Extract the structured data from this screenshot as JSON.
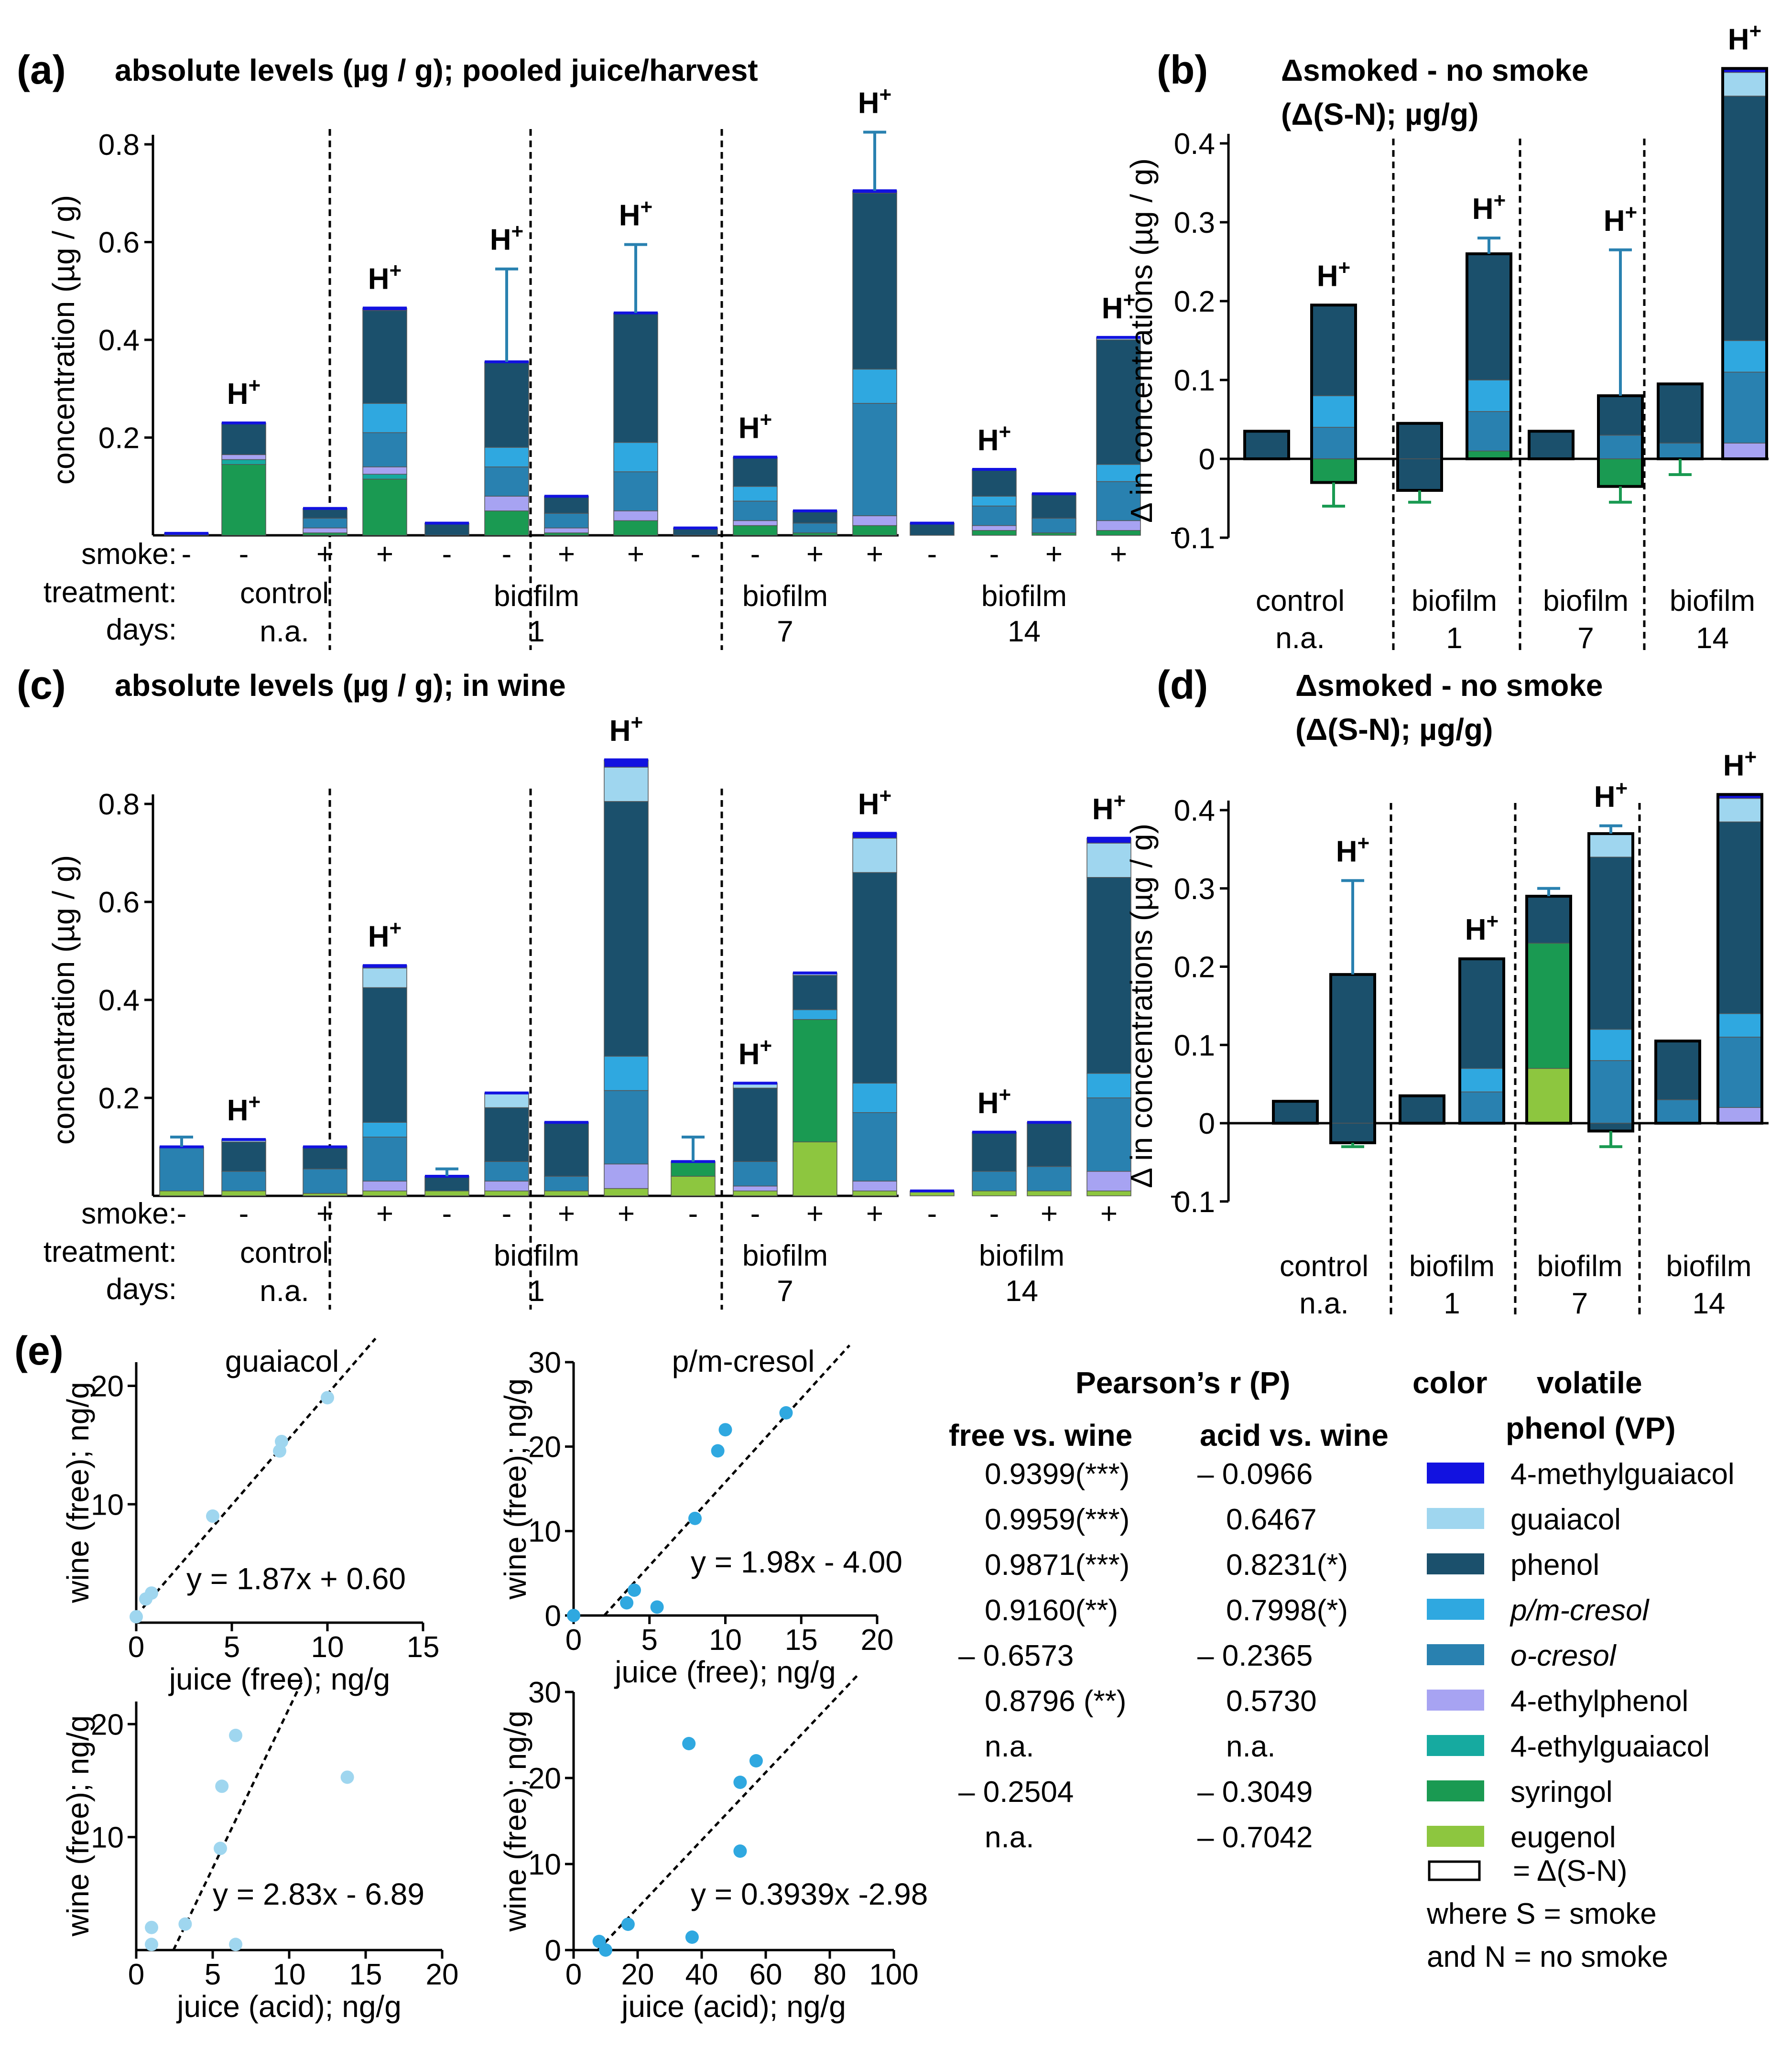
{
  "colors": {
    "4-methylguaiacol": "#1212e0",
    "guaiacol": "#9fd6ef",
    "phenol": "#1b506c",
    "p/m-cresol": "#2fa8e0",
    "o-cresol": "#2981b0",
    "4-ethylphenol": "#a7a3f2",
    "4-ethylguaiacol": "#16aaa0",
    "syringol": "#1a9a52",
    "eugenol": "#8dc63f"
  },
  "panels": {
    "a": {
      "label": "(a)",
      "title": "absolute levels (µg / g); pooled juice/harvest"
    },
    "b": {
      "label": "(b)",
      "title1": "Δsmoked - no smoke",
      "title2": "(Δ(S-N); µg/g)"
    },
    "c": {
      "label": "(c)",
      "title": "absolute levels (µg / g); in wine"
    },
    "d": {
      "label": "(d)",
      "title1": "Δsmoked - no smoke",
      "title2": "(Δ(S-N); µg/g)"
    },
    "e": {
      "label": "(e)"
    }
  },
  "hplus": "H+",
  "abs_axis": {
    "ylabel": "concentration (µg / g)",
    "ticks": [
      "0.2",
      "0.4",
      "0.6",
      "0.8"
    ]
  },
  "delta_axis": {
    "ylabel": "Δ in concentrations (µg / g)",
    "ticks_b": [
      "0.4",
      "0.3",
      "0.2",
      "0.1",
      "0",
      "0.1"
    ],
    "ticks_d": [
      "0.4",
      "0.3",
      "0.2",
      "0.1",
      "0",
      "0.1"
    ]
  },
  "rowlabels": {
    "smoke": "smoke:",
    "treatment": "treatment:",
    "days": "days:"
  },
  "groups": [
    {
      "treatment": "control",
      "days": "n.a.",
      "smoke": [
        "-",
        "-",
        "+",
        "+"
      ]
    },
    {
      "treatment": "biofilm",
      "days": "1",
      "smoke": [
        "-",
        "-",
        "+",
        "+"
      ]
    },
    {
      "treatment": "biofilm",
      "days": "7",
      "smoke": [
        "-",
        "-",
        "+",
        "+"
      ]
    },
    {
      "treatment": "biofilm",
      "days": "14",
      "smoke": [
        "-",
        "-",
        "+",
        "+"
      ]
    }
  ],
  "chart_data": [
    {
      "id": "a",
      "type": "bar",
      "stacked": true,
      "title": "absolute levels (µg / g); pooled juice/harvest",
      "ylabel": "concentration (µg / g)",
      "ylim": [
        0,
        0.8
      ],
      "bars": [
        {
          "g": 0,
          "comp": {
            "phenol": 0.004
          },
          "err": 0.0,
          "h": false
        },
        {
          "g": 0,
          "comp": {
            "syringol": 0.145,
            "4-ethylguaiacol": 0.01,
            "4-ethylphenol": 0.01,
            "phenol": 0.065
          },
          "err": 0.0,
          "h": true
        },
        {
          "g": 0,
          "comp": {
            "syringol": 0.005,
            "4-ethylphenol": 0.01,
            "o-cresol": 0.02,
            "phenol": 0.02
          },
          "err": 0.0,
          "h": false
        },
        {
          "g": 0,
          "comp": {
            "syringol": 0.115,
            "4-ethylguaiacol": 0.01,
            "4-ethylphenol": 0.015,
            "o-cresol": 0.07,
            "p/m-cresol": 0.06,
            "phenol": 0.19,
            "4-methylguaiacol": 0.005
          },
          "err": 0.0,
          "h": true
        },
        {
          "g": 1,
          "comp": {
            "phenol": 0.025
          },
          "err": 0.0,
          "h": false
        },
        {
          "g": 1,
          "comp": {
            "syringol": 0.05,
            "4-ethylphenol": 0.03,
            "o-cresol": 0.06,
            "p/m-cresol": 0.04,
            "phenol": 0.175
          },
          "err": 0.19,
          "h": true
        },
        {
          "g": 1,
          "comp": {
            "syringol": 0.005,
            "4-ethylphenol": 0.01,
            "o-cresol": 0.03,
            "phenol": 0.035
          },
          "err": 0.0,
          "h": false
        },
        {
          "g": 1,
          "comp": {
            "syringol": 0.03,
            "4-ethylphenol": 0.02,
            "o-cresol": 0.08,
            "p/m-cresol": 0.06,
            "phenol": 0.265
          },
          "err": 0.14,
          "h": true
        },
        {
          "g": 2,
          "comp": {
            "phenol": 0.015
          },
          "err": 0.0,
          "h": false
        },
        {
          "g": 2,
          "comp": {
            "syringol": 0.02,
            "4-ethylphenol": 0.01,
            "o-cresol": 0.04,
            "p/m-cresol": 0.03,
            "phenol": 0.06
          },
          "err": 0.0,
          "h": true
        },
        {
          "g": 2,
          "comp": {
            "syringol": 0.005,
            "o-cresol": 0.02,
            "phenol": 0.025
          },
          "err": 0.0,
          "h": false
        },
        {
          "g": 2,
          "comp": {
            "syringol": 0.02,
            "4-ethylphenol": 0.02,
            "o-cresol": 0.23,
            "p/m-cresol": 0.07,
            "phenol": 0.36,
            "4-methylguaiacol": 0.005
          },
          "err": 0.12,
          "h": true
        },
        {
          "g": 3,
          "comp": {
            "phenol": 0.025
          },
          "err": 0.0,
          "h": false
        },
        {
          "g": 3,
          "comp": {
            "syringol": 0.01,
            "4-ethylphenol": 0.01,
            "o-cresol": 0.04,
            "p/m-cresol": 0.02,
            "phenol": 0.055
          },
          "err": 0.0,
          "h": true
        },
        {
          "g": 3,
          "comp": {
            "syringol": 0.005,
            "o-cresol": 0.03,
            "phenol": 0.05
          },
          "err": 0.0,
          "h": false
        },
        {
          "g": 3,
          "comp": {
            "syringol": 0.01,
            "4-ethylphenol": 0.02,
            "o-cresol": 0.08,
            "p/m-cresol": 0.035,
            "phenol": 0.255,
            "guaiacol": 0.005
          },
          "err": 0.0,
          "h": true
        }
      ]
    },
    {
      "id": "b",
      "type": "bar",
      "stacked": true,
      "title": "Δsmoked - no smoke (Δ(S-N); µg/g)",
      "ylabel": "Δ in concentrations (µg / g)",
      "ylim": [
        -0.1,
        0.4
      ],
      "bars": [
        {
          "g": 0,
          "pos": {
            "phenol": 0.035
          },
          "neg": {},
          "err": 0.0,
          "h": false
        },
        {
          "g": 0,
          "pos": {
            "o-cresol": 0.04,
            "p/m-cresol": 0.04,
            "phenol": 0.115
          },
          "neg": {
            "syringol": -0.03
          },
          "err": 0.0,
          "errn": -0.03,
          "h": true
        },
        {
          "g": 1,
          "pos": {
            "phenol": 0.045
          },
          "neg": {
            "phenol": -0.04
          },
          "err": 0.0,
          "errn": -0.015,
          "h": false
        },
        {
          "g": 1,
          "pos": {
            "syringol": 0.01,
            "o-cresol": 0.05,
            "p/m-cresol": 0.04,
            "phenol": 0.16
          },
          "neg": {},
          "err": 0.02,
          "h": true
        },
        {
          "g": 2,
          "pos": {
            "phenol": 0.035
          },
          "neg": {},
          "err": 0.0,
          "h": false
        },
        {
          "g": 2,
          "pos": {
            "o-cresol": 0.03,
            "phenol": 0.05
          },
          "neg": {
            "syringol": -0.035
          },
          "err": 0.185,
          "errn": -0.02,
          "h": true
        },
        {
          "g": 3,
          "pos": {
            "o-cresol": 0.02,
            "phenol": 0.075
          },
          "neg": {},
          "err": 0.0,
          "errn": -0.02,
          "h": false
        },
        {
          "g": 3,
          "pos": {
            "4-ethylphenol": 0.02,
            "o-cresol": 0.09,
            "p/m-cresol": 0.04,
            "phenol": 0.31,
            "guaiacol": 0.03,
            "4-methylguaiacol": 0.005
          },
          "neg": {},
          "err": 0.0,
          "h": true
        }
      ]
    },
    {
      "id": "c",
      "type": "bar",
      "stacked": true,
      "title": "absolute levels (µg / g); in wine",
      "ylabel": "concentration (µg / g)",
      "ylim": [
        0,
        0.8
      ],
      "bars": [
        {
          "g": 0,
          "comp": {
            "eugenol": 0.01,
            "o-cresol": 0.09
          },
          "err": 0.02,
          "h": false
        },
        {
          "g": 0,
          "comp": {
            "eugenol": 0.01,
            "o-cresol": 0.04,
            "phenol": 0.06,
            "guaiacol": 0.005
          },
          "err": 0.0,
          "h": true
        },
        {
          "g": 0,
          "comp": {
            "eugenol": 0.005,
            "o-cresol": 0.05,
            "phenol": 0.045
          },
          "err": 0.0,
          "h": false
        },
        {
          "g": 0,
          "comp": {
            "eugenol": 0.01,
            "4-ethylphenol": 0.02,
            "o-cresol": 0.09,
            "p/m-cresol": 0.03,
            "phenol": 0.275,
            "guaiacol": 0.04,
            "4-methylguaiacol": 0.005
          },
          "err": 0.0,
          "h": true
        },
        {
          "g": 1,
          "comp": {
            "eugenol": 0.01,
            "phenol": 0.03
          },
          "err": 0.015,
          "h": false
        },
        {
          "g": 1,
          "comp": {
            "eugenol": 0.01,
            "4-ethylphenol": 0.02,
            "o-cresol": 0.04,
            "phenol": 0.11,
            "guaiacol": 0.03
          },
          "err": 0.0,
          "h": false
        },
        {
          "g": 1,
          "comp": {
            "eugenol": 0.01,
            "o-cresol": 0.03,
            "phenol": 0.11
          },
          "err": 0.0,
          "h": false
        },
        {
          "g": 1,
          "comp": {
            "eugenol": 0.015,
            "4-ethylphenol": 0.05,
            "o-cresol": 0.15,
            "p/m-cresol": 0.07,
            "phenol": 0.52,
            "guaiacol": 0.07,
            "4-methylguaiacol": 0.015
          },
          "err": 0.0,
          "h": true
        },
        {
          "g": 2,
          "comp": {
            "eugenol": 0.04,
            "syringol": 0.03
          },
          "err": 0.05,
          "h": false
        },
        {
          "g": 2,
          "comp": {
            "eugenol": 0.01,
            "4-ethylphenol": 0.01,
            "o-cresol": 0.05,
            "phenol": 0.15,
            "guaiacol": 0.01
          },
          "err": 0.0,
          "h": true
        },
        {
          "g": 2,
          "comp": {
            "eugenol": 0.11,
            "syringol": 0.25,
            "p/m-cresol": 0.02,
            "phenol": 0.07,
            "guaiacol": 0.005
          },
          "err": 0.0,
          "h": false
        },
        {
          "g": 2,
          "comp": {
            "eugenol": 0.01,
            "4-ethylphenol": 0.02,
            "o-cresol": 0.14,
            "p/m-cresol": 0.06,
            "phenol": 0.43,
            "guaiacol": 0.07,
            "4-methylguaiacol": 0.01
          },
          "err": 0.0,
          "h": true
        },
        {
          "g": 3,
          "comp": {
            "eugenol": 0.01
          },
          "err": 0.0,
          "h": false
        },
        {
          "g": 3,
          "comp": {
            "eugenol": 0.01,
            "o-cresol": 0.04,
            "phenol": 0.08
          },
          "err": 0.0,
          "h": true
        },
        {
          "g": 3,
          "comp": {
            "eugenol": 0.01,
            "o-cresol": 0.05,
            "phenol": 0.09
          },
          "err": 0.0,
          "h": false
        },
        {
          "g": 3,
          "comp": {
            "eugenol": 0.01,
            "4-ethylphenol": 0.04,
            "o-cresol": 0.15,
            "p/m-cresol": 0.05,
            "phenol": 0.4,
            "guaiacol": 0.07,
            "4-methylguaiacol": 0.01
          },
          "err": 0.0,
          "h": true
        }
      ]
    },
    {
      "id": "d",
      "type": "bar",
      "stacked": true,
      "title": "Δsmoked - no smoke (Δ(S-N); µg/g)",
      "ylabel": "Δ in concentrations (µg / g)",
      "ylim": [
        -0.1,
        0.4
      ],
      "bars": [
        {
          "g": 0,
          "pos": {
            "phenol": 0.028
          },
          "neg": {},
          "err": 0.0,
          "h": false
        },
        {
          "g": 0,
          "pos": {
            "phenol": 0.19
          },
          "neg": {
            "phenol": -0.025
          },
          "err": 0.12,
          "errn": -0.005,
          "h": true
        },
        {
          "g": 1,
          "pos": {
            "phenol": 0.035
          },
          "neg": {},
          "err": 0.0,
          "h": false
        },
        {
          "g": 1,
          "pos": {
            "o-cresol": 0.04,
            "p/m-cresol": 0.03,
            "phenol": 0.14
          },
          "neg": {},
          "err": 0.0,
          "h": true
        },
        {
          "g": 2,
          "pos": {
            "eugenol": 0.07,
            "syringol": 0.16,
            "phenol": 0.06
          },
          "neg": {},
          "err": 0.01,
          "h": false
        },
        {
          "g": 2,
          "pos": {
            "o-cresol": 0.08,
            "p/m-cresol": 0.04,
            "phenol": 0.22,
            "guaiacol": 0.03
          },
          "neg": {
            "phenol": -0.01
          },
          "err": 0.01,
          "errn": -0.02,
          "h": true
        },
        {
          "g": 3,
          "pos": {
            "o-cresol": 0.03,
            "phenol": 0.075
          },
          "neg": {},
          "err": 0.0,
          "h": false
        },
        {
          "g": 3,
          "pos": {
            "4-ethylphenol": 0.02,
            "o-cresol": 0.09,
            "p/m-cresol": 0.03,
            "phenol": 0.245,
            "guaiacol": 0.03,
            "4-methylguaiacol": 0.005
          },
          "neg": {},
          "err": 0.0,
          "h": true
        }
      ]
    },
    {
      "id": "e1",
      "type": "scatter",
      "title": "guaiacol",
      "xlabel": "juice (free); ng/g",
      "ylabel": "wine (free); ng/g",
      "xlim": [
        0,
        15
      ],
      "ylim": [
        0,
        22
      ],
      "xticks": [
        "0",
        "5",
        "10",
        "15"
      ],
      "yticks": [
        "10",
        "20"
      ],
      "equation": "y = 1.87x + 0.60",
      "fit": [
        1.87,
        0.6
      ],
      "color": "#9fd6ef",
      "points": [
        [
          0.0,
          0.5
        ],
        [
          0.5,
          2.0
        ],
        [
          0.8,
          2.5
        ],
        [
          4.0,
          9.0
        ],
        [
          7.5,
          14.5
        ],
        [
          7.6,
          15.3
        ],
        [
          10.0,
          19.0
        ]
      ]
    },
    {
      "id": "e2",
      "type": "scatter",
      "title": "p/m-cresol",
      "xlabel": "juice (free); ng/g",
      "ylabel": "wine (free); ng/g",
      "xlim": [
        0,
        20
      ],
      "ylim": [
        0,
        30
      ],
      "xticks": [
        "0",
        "5",
        "10",
        "15",
        "20"
      ],
      "yticks": [
        "0",
        "10",
        "20",
        "30"
      ],
      "equation": "y = 1.98x - 4.00",
      "fit": [
        1.98,
        -4.0
      ],
      "color": "#2fa8e0",
      "points": [
        [
          0.0,
          0.0
        ],
        [
          3.5,
          1.5
        ],
        [
          4.0,
          3.0
        ],
        [
          5.5,
          1.0
        ],
        [
          8.0,
          11.5
        ],
        [
          9.5,
          19.5
        ],
        [
          10.0,
          22.0
        ],
        [
          14.0,
          24.0
        ]
      ]
    },
    {
      "id": "e3",
      "type": "scatter",
      "title": "",
      "xlabel": "juice (acid); ng/g",
      "ylabel": "wine (free); ng/g",
      "xlim": [
        0,
        20
      ],
      "ylim": [
        0,
        22
      ],
      "xticks": [
        "0",
        "5",
        "10",
        "15",
        "20"
      ],
      "yticks": [
        "10",
        "20"
      ],
      "equation": "y = 2.83x - 6.89",
      "fit": [
        2.83,
        -6.89
      ],
      "color": "#9fd6ef",
      "points": [
        [
          1.0,
          0.5
        ],
        [
          1.0,
          2.0
        ],
        [
          3.2,
          2.3
        ],
        [
          6.5,
          0.5
        ],
        [
          5.5,
          9.0
        ],
        [
          5.6,
          14.5
        ],
        [
          6.5,
          19.0
        ],
        [
          13.8,
          15.3
        ]
      ]
    },
    {
      "id": "e4",
      "type": "scatter",
      "title": "",
      "xlabel": "juice (acid); ng/g",
      "ylabel": "wine (free); ng/g",
      "xlim": [
        0,
        100
      ],
      "ylim": [
        0,
        30
      ],
      "xticks": [
        "0",
        "20",
        "40",
        "60",
        "80",
        "100"
      ],
      "yticks": [
        "0",
        "10",
        "20",
        "30"
      ],
      "equation": "y = 0.3939x -2.98",
      "fit": [
        0.3939,
        -2.98
      ],
      "color": "#2fa8e0",
      "points": [
        [
          8.0,
          1.0
        ],
        [
          10.0,
          0.0
        ],
        [
          17.0,
          3.0
        ],
        [
          37.0,
          1.5
        ],
        [
          36.0,
          24.0
        ],
        [
          52.0,
          11.5
        ],
        [
          52.0,
          19.5
        ],
        [
          57.0,
          22.0
        ]
      ]
    }
  ],
  "table": {
    "header_pearson": "Pearson’s r  (P)",
    "header_color": "color",
    "header_vp1": "volatile",
    "header_vp2": "phenol (VP)",
    "col_free": "free vs. wine",
    "col_acid": "acid vs. wine",
    "rows": [
      {
        "free": "0.9399(***)",
        "acid": "– 0.0966",
        "compound": "4-methylguaiacol",
        "italic": false
      },
      {
        "free": "0.9959(***)",
        "acid": "0.6467",
        "compound": "guaiacol",
        "italic": false
      },
      {
        "free": "0.9871(***)",
        "acid": "0.8231(*)",
        "compound": "phenol",
        "italic": false
      },
      {
        "free": "0.9160(**)",
        "acid": "0.7998(*)",
        "compound": "p/m-cresol",
        "italic": true
      },
      {
        "free": "– 0.6573",
        "acid": "– 0.2365",
        "compound": "o-cresol",
        "italic": true
      },
      {
        "free": "0.8796 (**)",
        "acid": "0.5730",
        "compound": "4-ethylphenol",
        "italic": false
      },
      {
        "free": "n.a.",
        "acid": "n.a.",
        "compound": "4-ethylguaiacol",
        "italic": false
      },
      {
        "free": "– 0.2504",
        "acid": "– 0.3049",
        "compound": "syringol",
        "italic": false
      },
      {
        "free": "n.a.",
        "acid": "– 0.7042",
        "compound": "eugenol",
        "italic": false
      }
    ],
    "delta_key": "= Δ(S-N)",
    "note1": "where S = smoke",
    "note2": "and N = no smoke"
  }
}
